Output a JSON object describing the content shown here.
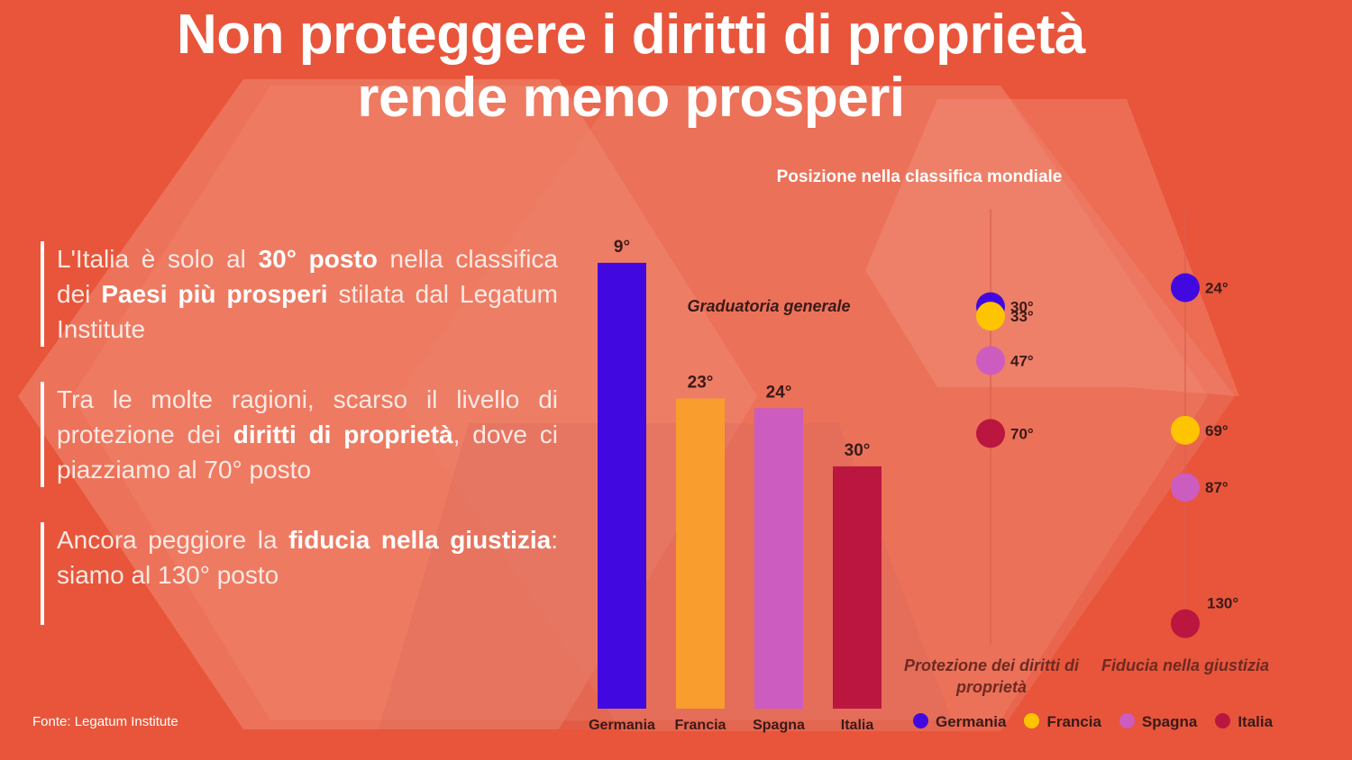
{
  "title_line1": "Non proteggere i diritti di proprietà",
  "title_line2": "rende meno prosperi",
  "paragraphs": [
    {
      "segments": [
        {
          "t": "L'Italia è solo al ",
          "b": false
        },
        {
          "t": "30° posto",
          "b": true
        },
        {
          "t": " nella classifica dei ",
          "b": false
        },
        {
          "t": "Paesi più prosperi",
          "b": true
        },
        {
          "t": " stilata dal Legatum Institute",
          "b": false
        }
      ]
    },
    {
      "segments": [
        {
          "t": "Tra le molte ragioni, scarso il livello di protezione dei ",
          "b": false
        },
        {
          "t": "diritti di proprietà",
          "b": true
        },
        {
          "t": ", dove ci piazziamo al 70° posto",
          "b": false
        }
      ]
    },
    {
      "segments": [
        {
          "t": "Ancora peggiore la ",
          "b": false
        },
        {
          "t": "fiducia nella giustizia",
          "b": true
        },
        {
          "t": ": siamo al 130° posto",
          "b": false
        }
      ]
    }
  ],
  "source": "Fonte: Legatum Institute",
  "chart_data": [
    {
      "type": "bar",
      "title": "Graduatoria generale",
      "categories": [
        "Germania",
        "Francia",
        "Spagna",
        "Italia"
      ],
      "values": [
        9,
        23,
        24,
        30
      ],
      "value_labels": [
        "9°",
        "23°",
        "24°",
        "30°"
      ],
      "colors": [
        "#4208e0",
        "#f89d2e",
        "#cc5cc0",
        "#bb1640"
      ]
    },
    {
      "type": "scatter",
      "title": "Posizione nella classifica mondiale",
      "columns": [
        {
          "label": "Protezione dei diritti di proprietà",
          "points": [
            {
              "name": "Germania",
              "value": 30,
              "label": "30°"
            },
            {
              "name": "Francia",
              "value": 33,
              "label": "33°"
            },
            {
              "name": "Spagna",
              "value": 47,
              "label": "47°"
            },
            {
              "name": "Italia",
              "value": 70,
              "label": "70°"
            }
          ]
        },
        {
          "label": "Fiducia nella giustizia",
          "points": [
            {
              "name": "Germania",
              "value": 24,
              "label": "24°"
            },
            {
              "name": "Francia",
              "value": 69,
              "label": "69°"
            },
            {
              "name": "Spagna",
              "value": 87,
              "label": "87°"
            },
            {
              "name": "Italia",
              "value": 130,
              "label": "130°"
            }
          ]
        }
      ],
      "legend": [
        {
          "name": "Germania",
          "color": "#4208e0"
        },
        {
          "name": "Francia",
          "color": "#ffc400"
        },
        {
          "name": "Spagna",
          "color": "#cc5cc0"
        },
        {
          "name": "Italia",
          "color": "#bb1640"
        }
      ],
      "colors": {
        "Germania": "#4208e0",
        "Francia": "#ffc400",
        "Spagna": "#cc5cc0",
        "Italia": "#bb1640"
      }
    }
  ]
}
